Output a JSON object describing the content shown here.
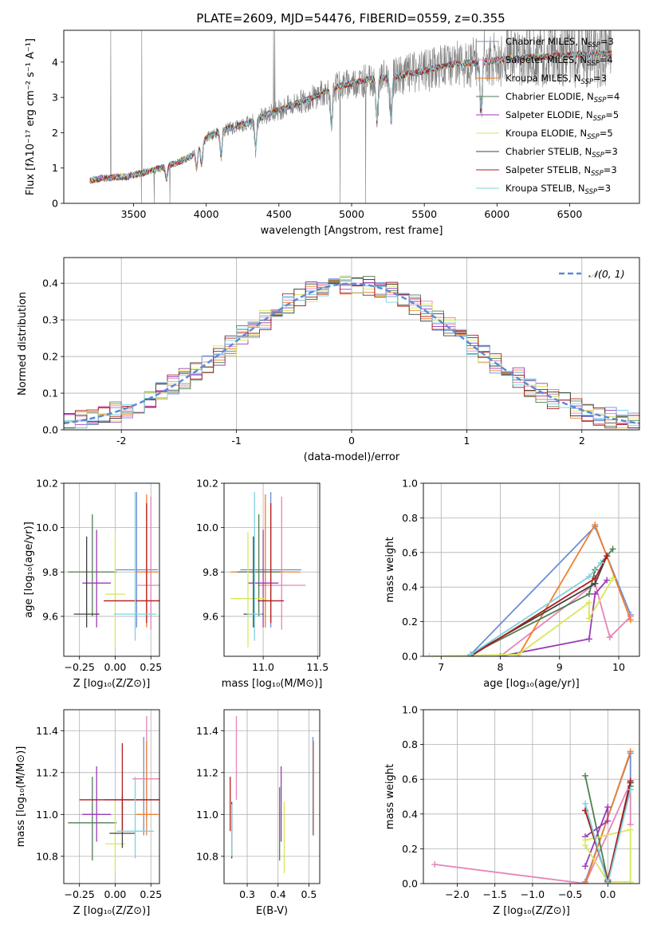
{
  "title": "PLATE=2609, MJD=54476, FIBERID=0559, z=0.355",
  "colors": {
    "series": [
      "#7f7f7f",
      "#8c8cd9",
      "#f07f2a",
      "#4f7f4f",
      "#9c3ab8",
      "#d9e65c",
      "#404040",
      "#b01c1c",
      "#7fd0e0"
    ],
    "alt_chabrier_miles": "#6b8ed6",
    "alt_salpeter_miles": "#e685b8",
    "gaussian": "#5b8ad6"
  },
  "chart_data": [
    {
      "id": "spectrum",
      "type": "line",
      "title": "PLATE=2609, MJD=54476, FIBERID=0559, z=0.355",
      "xlabel": "wavelength [Angstrom, rest frame]",
      "ylabel": "Flux [fλ10⁻¹⁷ erg cm⁻² s⁻¹ A⁻¹]",
      "xlim": [
        3020,
        6980
      ],
      "ylim": [
        0,
        4.9
      ],
      "xticks": [
        3500,
        4000,
        4500,
        5000,
        5500,
        6000,
        6500
      ],
      "yticks": [
        0,
        1,
        2,
        3,
        4
      ],
      "grid": false,
      "legend": "upper right",
      "data_range": [
        3200,
        6790
      ],
      "continuum_knots": {
        "x": [
          3200,
          3300,
          3450,
          3650,
          3800,
          3900,
          4000,
          4100,
          4300,
          4500,
          4700,
          4900,
          5100,
          5300,
          5500,
          5700,
          5900,
          6100,
          6300,
          6500,
          6790
        ],
        "y": [
          0.65,
          0.72,
          0.75,
          0.95,
          1.15,
          1.35,
          1.85,
          2.05,
          2.3,
          2.65,
          2.95,
          3.3,
          3.5,
          3.6,
          3.75,
          3.95,
          4.0,
          4.1,
          4.15,
          4.2,
          4.25
        ]
      },
      "series": [
        {
          "name": "Chabrier MILES, N$_{SSP}$=3",
          "label": "Chabrier MILES, N",
          "sub": "SSP",
          "tail": "=3"
        },
        {
          "name": "Salpeter MILES, N$_{SSP}$=4",
          "label": "Salpeter MILES, N",
          "sub": "SSP",
          "tail": "=4"
        },
        {
          "name": "Kroupa MILES, N$_{SSP}$=3",
          "label": "Kroupa MILES, N",
          "sub": "SSP",
          "tail": "=3"
        },
        {
          "name": "Chabrier ELODIE, N$_{SSP}$=4",
          "label": "Chabrier ELODIE, N",
          "sub": "SSP",
          "tail": "=4"
        },
        {
          "name": "Salpeter ELODIE, N$_{SSP}$=5",
          "label": "Salpeter ELODIE, N",
          "sub": "SSP",
          "tail": "=5"
        },
        {
          "name": "Kroupa ELODIE, N$_{SSP}$=5",
          "label": "Kroupa ELODIE, N",
          "sub": "SSP",
          "tail": "=5"
        },
        {
          "name": "Chabrier STELIB, N$_{SSP}$=3",
          "label": "Chabrier STELIB, N",
          "sub": "SSP",
          "tail": "=3"
        },
        {
          "name": "Salpeter STELIB, N$_{SSP}$=3",
          "label": "Salpeter STELIB, N",
          "sub": "SSP",
          "tail": "=3"
        },
        {
          "name": "Kroupa STELIB, N$_{SSP}$=3",
          "label": "Kroupa STELIB, N",
          "sub": "SSP",
          "tail": "=3"
        }
      ]
    },
    {
      "id": "residuals",
      "type": "line",
      "xlabel": "(data-model)/error",
      "ylabel": "Normed distribution",
      "xlim": [
        -2.5,
        2.5
      ],
      "ylim": [
        0,
        0.47
      ],
      "xticks": [
        -2,
        -1,
        0,
        1,
        2
      ],
      "yticks": [
        0.0,
        0.1,
        0.2,
        0.3,
        0.4
      ],
      "grid": true,
      "legend": "upper right",
      "legend_label": "𝒩(0, 1)",
      "bin_width": 0.1,
      "gaussian": {
        "mu": 0,
        "sigma": 1
      }
    },
    {
      "id": "age_vs_Z",
      "type": "scatter",
      "xlabel": "Z [log₁₀(Z/Z⊙)]",
      "ylabel": "age  [log₁₀(age/yr)]",
      "xlim": [
        -0.36,
        0.31
      ],
      "ylim": [
        9.42,
        10.2
      ],
      "xticks": [
        -0.25,
        0.0,
        0.25
      ],
      "xtick_labels": [
        "−0.25",
        "0.00",
        "0.25"
      ],
      "yticks": [
        9.6,
        9.8,
        10.0,
        10.2
      ],
      "grid": true,
      "points": [
        {
          "x": 0.15,
          "y": 9.81,
          "xerr": 0.15,
          "yerr": [
            0.26,
            0.35
          ]
        },
        {
          "x": 0.25,
          "y": 9.74,
          "xerr": 0.1,
          "yerr": [
            0.2,
            0.4
          ]
        },
        {
          "x": 0.22,
          "y": 9.8,
          "xerr": 0.08,
          "yerr": [
            0.25,
            0.35
          ]
        },
        {
          "x": -0.16,
          "y": 9.8,
          "xerr": 0.17,
          "yerr": [
            0.2,
            0.26
          ]
        },
        {
          "x": -0.13,
          "y": 9.75,
          "xerr": 0.1,
          "yerr": [
            0.2,
            0.24
          ]
        },
        {
          "x": 0.0,
          "y": 9.7,
          "xerr": 0.07,
          "yerr": [
            0.24,
            0.28
          ]
        },
        {
          "x": -0.2,
          "y": 9.61,
          "xerr": 0.09,
          "yerr": [
            0.06,
            0.35
          ]
        },
        {
          "x": 0.22,
          "y": 9.67,
          "xerr": 0.3,
          "yerr": [
            0.1,
            0.44
          ]
        },
        {
          "x": 0.14,
          "y": 9.61,
          "xerr": 0.15,
          "yerr": [
            0.12,
            0.55
          ]
        }
      ]
    },
    {
      "id": "age_vs_mass",
      "type": "scatter",
      "xlabel": "mass [log₁₀(M/M⊙)]",
      "ylabel": "",
      "xlim": [
        10.64,
        11.52
      ],
      "ylim": [
        9.42,
        10.2
      ],
      "xticks": [
        11.0,
        11.5
      ],
      "yticks": [
        9.6,
        9.8,
        10.0,
        10.2
      ],
      "grid": true,
      "points": [
        {
          "x": 11.07,
          "y": 9.81,
          "xerr": 0.28,
          "yerr": [
            0.26,
            0.35
          ]
        },
        {
          "x": 11.17,
          "y": 9.74,
          "xerr": 0.22,
          "yerr": [
            0.2,
            0.4
          ]
        },
        {
          "x": 11.02,
          "y": 9.8,
          "xerr": 0.32,
          "yerr": [
            0.25,
            0.35
          ]
        },
        {
          "x": 10.96,
          "y": 9.8,
          "xerr": 0.2,
          "yerr": [
            0.2,
            0.26
          ]
        },
        {
          "x": 11.0,
          "y": 9.75,
          "xerr": 0.14,
          "yerr": [
            0.2,
            0.24
          ]
        },
        {
          "x": 10.86,
          "y": 9.68,
          "xerr": 0.16,
          "yerr": [
            0.22,
            0.3
          ]
        },
        {
          "x": 10.91,
          "y": 9.61,
          "xerr": 0.09,
          "yerr": [
            0.06,
            0.35
          ]
        },
        {
          "x": 11.07,
          "y": 9.67,
          "xerr": 0.12,
          "yerr": [
            0.1,
            0.44
          ]
        },
        {
          "x": 10.92,
          "y": 9.61,
          "xerr": 0.07,
          "yerr": [
            0.12,
            0.55
          ]
        }
      ]
    },
    {
      "id": "weight_vs_age",
      "type": "line",
      "xlabel": "age  [log₁₀(age/yr)]",
      "ylabel": "mass weight",
      "xlim": [
        6.7,
        10.35
      ],
      "ylim": [
        0,
        1.0
      ],
      "xticks": [
        7,
        8,
        9,
        10
      ],
      "yticks": [
        0.0,
        0.2,
        0.4,
        0.6,
        0.8,
        1.0
      ],
      "grid": true,
      "series": [
        {
          "x": [
            7.5,
            9.6,
            10.2
          ],
          "y": [
            0.01,
            0.75,
            0.24
          ]
        },
        {
          "x": [
            8.0,
            9.6,
            9.85,
            10.2
          ],
          "y": [
            0.0,
            0.42,
            0.11,
            0.23
          ]
        },
        {
          "x": [
            8.3,
            9.6,
            10.2
          ],
          "y": [
            0.0,
            0.76,
            0.21
          ]
        },
        {
          "x": [
            7.5,
            9.5,
            9.6,
            9.9
          ],
          "y": [
            0.01,
            0.36,
            0.5,
            0.62
          ]
        },
        {
          "x": [
            8.0,
            9.5,
            9.6,
            9.8
          ],
          "y": [
            0.0,
            0.1,
            0.36,
            0.44
          ]
        },
        {
          "x": [
            6.8,
            8.3,
            9.5,
            9.5,
            9.9
          ],
          "y": [
            0.0,
            0.01,
            0.31,
            0.22,
            0.45
          ]
        },
        {
          "x": [
            7.5,
            9.6,
            9.8
          ],
          "y": [
            0.01,
            0.42,
            0.58
          ]
        },
        {
          "x": [
            7.5,
            9.6,
            9.8
          ],
          "y": [
            0.0,
            0.45,
            0.58
          ]
        },
        {
          "x": [
            7.5,
            9.5,
            9.7
          ],
          "y": [
            0.01,
            0.46,
            0.54
          ]
        }
      ]
    },
    {
      "id": "mass_vs_Z",
      "type": "scatter",
      "xlabel": "Z [log₁₀(Z/Z⊙)]",
      "ylabel": "mass [log₁₀(M/M⊙)]",
      "xlim": [
        -0.36,
        0.31
      ],
      "ylim": [
        10.67,
        11.5
      ],
      "xticks": [
        -0.25,
        0.0,
        0.25
      ],
      "xtick_labels": [
        "−0.25",
        "0.00",
        "0.25"
      ],
      "yticks": [
        10.8,
        11.0,
        11.2,
        11.4
      ],
      "grid": true,
      "points": [
        {
          "x": 0.2,
          "y": 11.07,
          "xerr": 0.28,
          "yerr": [
            0.17,
            0.3
          ]
        },
        {
          "x": 0.22,
          "y": 11.17,
          "xerr": 0.1,
          "yerr": [
            0.2,
            0.3
          ]
        },
        {
          "x": 0.22,
          "y": 11.0,
          "xerr": 0.08,
          "yerr": [
            0.1,
            0.35
          ]
        },
        {
          "x": -0.16,
          "y": 10.96,
          "xerr": 0.17,
          "yerr": [
            0.18,
            0.22
          ]
        },
        {
          "x": -0.13,
          "y": 11.0,
          "xerr": 0.1,
          "yerr": [
            0.13,
            0.23
          ]
        },
        {
          "x": 0.0,
          "y": 10.86,
          "xerr": 0.07,
          "yerr": [
            0.14,
            0.2
          ]
        },
        {
          "x": 0.05,
          "y": 10.91,
          "xerr": 0.09,
          "yerr": [
            0.07,
            0.18
          ]
        },
        {
          "x": 0.05,
          "y": 11.07,
          "xerr": 0.3,
          "yerr": [
            0.15,
            0.27
          ]
        },
        {
          "x": 0.14,
          "y": 10.92,
          "xerr": 0.13,
          "yerr": [
            0.13,
            0.26
          ]
        }
      ]
    },
    {
      "id": "mass_vs_ebv",
      "type": "scatter",
      "xlabel": "E(B-V)",
      "ylabel": "",
      "xlim": [
        0.225,
        0.535
      ],
      "ylim": [
        10.67,
        11.5
      ],
      "xticks": [
        0.3,
        0.4,
        0.5
      ],
      "yticks": [
        10.8,
        11.0,
        11.2,
        11.4
      ],
      "grid": true,
      "points": [
        {
          "x": 0.513,
          "y": 11.07,
          "xerr": 0,
          "yerr": [
            0.17,
            0.3
          ]
        },
        {
          "x": 0.265,
          "y": 11.17,
          "xerr": 0,
          "yerr": [
            0.1,
            0.3
          ]
        },
        {
          "x": 0.515,
          "y": 11.0,
          "xerr": 0,
          "yerr": [
            0.1,
            0.35
          ]
        },
        {
          "x": 0.405,
          "y": 10.96,
          "xerr": 0,
          "yerr": [
            0.18,
            0.17
          ]
        },
        {
          "x": 0.41,
          "y": 11.0,
          "xerr": 0,
          "yerr": [
            0.13,
            0.23
          ]
        },
        {
          "x": 0.42,
          "y": 10.86,
          "xerr": 0,
          "yerr": [
            0.14,
            0.2
          ]
        },
        {
          "x": 0.25,
          "y": 10.91,
          "xerr": 0,
          "yerr": [
            0.12,
            0.15
          ]
        },
        {
          "x": 0.245,
          "y": 11.07,
          "xerr": 0,
          "yerr": [
            0.15,
            0.11
          ]
        },
        {
          "x": 0.25,
          "y": 10.9,
          "xerr": 0,
          "yerr": [
            0.1,
            0.15
          ]
        }
      ]
    },
    {
      "id": "weight_vs_Z",
      "type": "line",
      "xlabel": "Z [log₁₀(Z/Z⊙)]",
      "ylabel": "mass weight",
      "xlim": [
        -2.45,
        0.42
      ],
      "ylim": [
        0,
        1.0
      ],
      "xticks": [
        -2.0,
        -1.5,
        -1.0,
        -0.5,
        0.0
      ],
      "xtick_labels": [
        "−2.0",
        "−1.5",
        "−1.0",
        "−0.5",
        "0.0"
      ],
      "yticks": [
        0.0,
        0.2,
        0.4,
        0.6,
        0.8,
        1.0
      ],
      "grid": true,
      "series": [
        {
          "x": [
            -0.3,
            0.3,
            0.3
          ],
          "y": [
            0.01,
            0.75,
            0.54
          ]
        },
        {
          "x": [
            -2.3,
            -0.3,
            0.3,
            0.3
          ],
          "y": [
            0.11,
            0.0,
            0.58,
            0.34
          ]
        },
        {
          "x": [
            -0.3,
            0.3
          ],
          "y": [
            0.0,
            0.76
          ]
        },
        {
          "x": [
            -0.3,
            0.0,
            0.3
          ],
          "y": [
            0.62,
            0.02,
            0.56
          ]
        },
        {
          "x": [
            -0.3,
            0.0,
            0.0,
            -0.3
          ],
          "y": [
            0.1,
            0.44,
            0.36,
            0.27
          ]
        },
        {
          "x": [
            -0.3,
            0.0,
            0.3,
            0.3,
            -0.3
          ],
          "y": [
            0.22,
            0.01,
            0.01,
            0.31,
            0.25
          ]
        },
        {
          "x": [
            -0.3,
            0.0,
            0.3
          ],
          "y": [
            0.42,
            0.01,
            0.58
          ]
        },
        {
          "x": [
            -0.3,
            0.0,
            0.3
          ],
          "y": [
            0.42,
            0.02,
            0.59
          ]
        },
        {
          "x": [
            -0.3,
            0.0,
            0.3
          ],
          "y": [
            0.46,
            0.0,
            0.54
          ]
        }
      ]
    }
  ]
}
